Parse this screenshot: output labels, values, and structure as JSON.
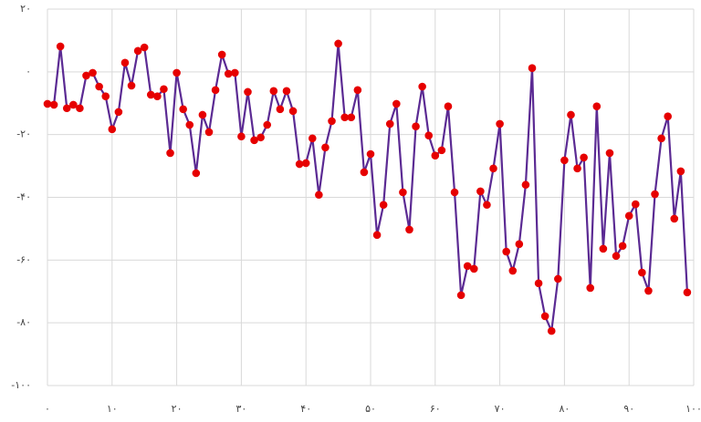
{
  "chart_data": {
    "type": "line",
    "x": [
      0,
      1,
      2,
      3,
      4,
      5,
      6,
      7,
      8,
      9,
      10,
      11,
      12,
      13,
      14,
      15,
      16,
      17,
      18,
      19,
      20,
      21,
      22,
      23,
      24,
      25,
      26,
      27,
      28,
      29,
      30,
      31,
      32,
      33,
      34,
      35,
      36,
      37,
      38,
      39,
      40,
      41,
      42,
      43,
      44,
      45,
      46,
      47,
      48,
      49,
      50,
      51,
      52,
      53,
      54,
      55,
      56,
      57,
      58,
      59,
      60,
      61,
      62,
      63,
      64,
      65,
      66,
      67,
      68,
      69,
      70,
      71,
      72,
      73,
      74,
      75,
      76,
      77,
      78,
      79,
      80,
      81,
      82,
      83,
      84,
      85,
      86,
      87,
      88,
      89,
      90,
      91,
      92,
      93,
      94,
      95,
      96,
      97,
      98,
      99
    ],
    "series": [
      {
        "color": "#5b2a93",
        "marker_color": "#e60000",
        "values": [
          -10.2,
          -10.5,
          8.1,
          -11.6,
          -10.5,
          -11.6,
          -1.2,
          -0.3,
          -4.7,
          -7.8,
          -18.3,
          -12.8,
          2.9,
          -4.4,
          6.7,
          7.8,
          -7.3,
          -7.8,
          -5.5,
          -25.9,
          -0.3,
          -11.9,
          -16.9,
          -32.3,
          -13.7,
          -19.2,
          -5.8,
          5.5,
          -0.6,
          -0.3,
          -20.6,
          -6.4,
          -21.8,
          -20.9,
          -16.9,
          -6.1,
          -11.9,
          -6.1,
          -12.5,
          -29.4,
          -29.1,
          -21.2,
          -39.2,
          -24.1,
          -15.7,
          9.0,
          -14.5,
          -14.5,
          -5.8,
          -32.0,
          -26.2,
          -52.0,
          -42.4,
          -16.6,
          -10.2,
          -38.4,
          -50.3,
          -17.4,
          -4.7,
          -20.3,
          -26.7,
          -25.0,
          -11.0,
          -38.4,
          -71.2,
          -61.9,
          -62.8,
          -38.1,
          -42.4,
          -30.8,
          -16.6,
          -57.3,
          -63.4,
          -54.9,
          -36.0,
          1.2,
          -67.4,
          -77.9,
          -82.6,
          -66.0,
          -28.2,
          -13.7,
          -30.8,
          -27.3,
          -68.9,
          -11.0,
          -56.4,
          -25.9,
          -58.7,
          -55.5,
          -45.9,
          -42.2,
          -64.0,
          -69.8,
          -39.0,
          -21.2,
          -14.2,
          -46.8,
          -31.7,
          -70.3
        ]
      }
    ],
    "xlim": [
      0,
      100
    ],
    "xticks": [
      {
        "value": 0,
        "label": "۰"
      },
      {
        "value": 10,
        "label": "۱۰"
      },
      {
        "value": 20,
        "label": "۲۰"
      },
      {
        "value": 30,
        "label": "۳۰"
      },
      {
        "value": 40,
        "label": "۴۰"
      },
      {
        "value": 50,
        "label": "۵۰"
      },
      {
        "value": 60,
        "label": "۶۰"
      },
      {
        "value": 70,
        "label": "۷۰"
      },
      {
        "value": 80,
        "label": "۸۰"
      },
      {
        "value": 90,
        "label": "۹۰"
      },
      {
        "value": 100,
        "label": "۱۰۰"
      }
    ],
    "ylim": [
      -100,
      20
    ],
    "yticks": [
      {
        "value": 20,
        "label": "۲۰"
      },
      {
        "value": 0,
        "label": "۰"
      },
      {
        "value": -20,
        "label": "-۲۰"
      },
      {
        "value": -40,
        "label": "-۴۰"
      },
      {
        "value": -60,
        "label": "-۶۰"
      },
      {
        "value": -80,
        "label": "-۸۰"
      },
      {
        "value": -100,
        "label": "-۱۰۰"
      }
    ],
    "grid": true
  }
}
